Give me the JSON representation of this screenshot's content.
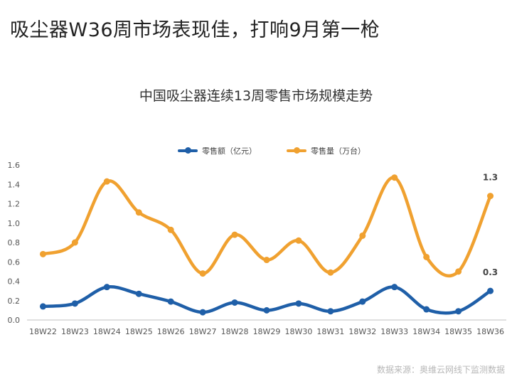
{
  "page": {
    "title": "吸尘器W36周市场表现佳，打响9月第一枪",
    "source": "数据来源：奥维云网线下监测数据"
  },
  "chart_data": {
    "type": "line",
    "title": "中国吸尘器连续13周零售市场规模走势",
    "categories": [
      "18W22",
      "18W23",
      "18W24",
      "18W25",
      "18W26",
      "18W27",
      "18W28",
      "18W29",
      "18W30",
      "18W31",
      "18W32",
      "18W33",
      "18W34",
      "18W35",
      "18W36"
    ],
    "series": [
      {
        "name": "零售额（亿元）",
        "color": "#1f5fa8",
        "values": [
          0.14,
          0.17,
          0.34,
          0.27,
          0.19,
          0.08,
          0.18,
          0.1,
          0.17,
          0.09,
          0.19,
          0.34,
          0.11,
          0.09,
          0.3
        ]
      },
      {
        "name": "零售量（万台）",
        "color": "#f0a130",
        "values": [
          0.68,
          0.8,
          1.43,
          1.11,
          0.93,
          0.48,
          0.88,
          0.62,
          0.82,
          0.49,
          0.87,
          1.47,
          0.65,
          0.5,
          1.28
        ]
      }
    ],
    "data_labels": [
      {
        "series": 0,
        "index": 14,
        "text": "0.3"
      },
      {
        "series": 1,
        "index": 14,
        "text": "1.3"
      }
    ],
    "ylim": [
      0,
      1.6
    ],
    "yticks": [
      "0.0",
      "0.2",
      "0.4",
      "0.6",
      "0.8",
      "1.0",
      "1.2",
      "1.4",
      "1.6"
    ],
    "grid": false,
    "legend": "top"
  }
}
